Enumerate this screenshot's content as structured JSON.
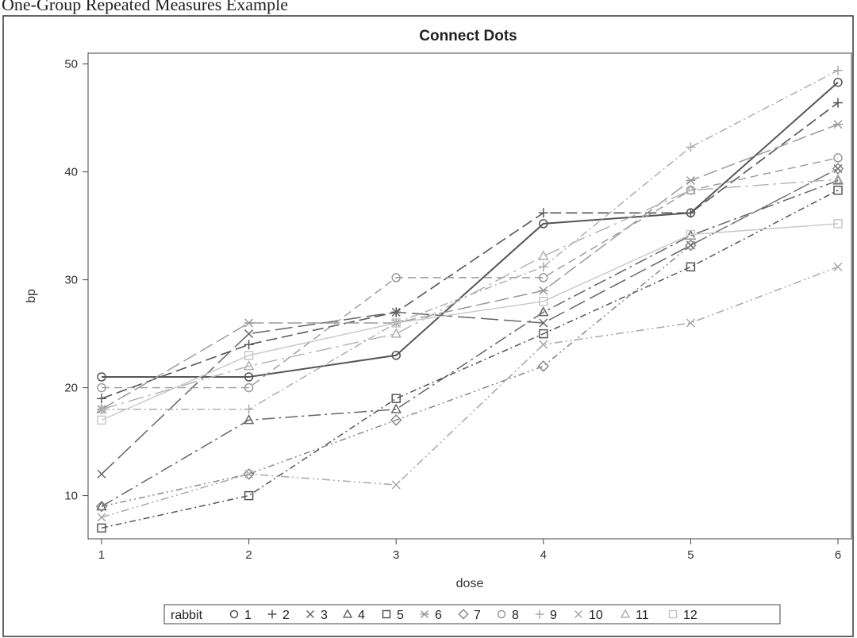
{
  "header": {
    "caption": "One-Group Repeated Measures Example"
  },
  "chart_data": {
    "type": "line",
    "title": "Connect Dots",
    "xlabel": "dose",
    "ylabel": "bp",
    "x": [
      1,
      2,
      3,
      4,
      5,
      6
    ],
    "xlim": [
      1,
      6
    ],
    "ylim": [
      6,
      51
    ],
    "xticks": [
      "1",
      "2",
      "3",
      "4",
      "5",
      "6"
    ],
    "yticks": [
      "10",
      "20",
      "30",
      "40",
      "50"
    ],
    "grid": false,
    "legend": {
      "title": "rabbit",
      "placement": "bottom-center"
    },
    "series": [
      {
        "name": "1",
        "marker": "circle",
        "values": [
          21,
          21,
          23,
          35.2,
          36.2,
          48.3
        ],
        "color": "#555555",
        "width": 2.0,
        "dash": ""
      },
      {
        "name": "2",
        "marker": "plus",
        "values": [
          19,
          24,
          27,
          36.2,
          36.2,
          46.4
        ],
        "color": "#555555",
        "width": 1.6,
        "dash": "14,6"
      },
      {
        "name": "3",
        "marker": "x",
        "values": [
          12,
          25,
          27,
          26,
          33.2,
          40.3
        ],
        "color": "#666666",
        "width": 1.5,
        "dash": "22,7"
      },
      {
        "name": "4",
        "marker": "triangle",
        "values": [
          9,
          17,
          18,
          27,
          34.1,
          39.2
        ],
        "color": "#666666",
        "width": 1.5,
        "dash": "16,5,3,5"
      },
      {
        "name": "5",
        "marker": "square",
        "values": [
          7,
          10,
          19,
          25,
          31.2,
          38.3
        ],
        "color": "#555555",
        "width": 1.5,
        "dash": "8,4,2,4"
      },
      {
        "name": "6",
        "marker": "asterisk",
        "values": [
          18,
          26,
          26,
          29,
          39.2,
          44.4
        ],
        "color": "#9a9a9a",
        "width": 1.5,
        "dash": "18,6"
      },
      {
        "name": "7",
        "marker": "diamond",
        "values": [
          9,
          12,
          17,
          22,
          33.2,
          40.3
        ],
        "color": "#888888",
        "width": 1.5,
        "dash": "8,4,2,4,2,4"
      },
      {
        "name": "8",
        "marker": "circle",
        "values": [
          20,
          20,
          30.2,
          30.2,
          38.3,
          41.3
        ],
        "color": "#999999",
        "width": 1.4,
        "dash": "10,6"
      },
      {
        "name": "9",
        "marker": "plus",
        "values": [
          18,
          18,
          26,
          31.2,
          42.3,
          49.4
        ],
        "color": "#aaaaaa",
        "width": 1.4,
        "dash": "10,4,2,4"
      },
      {
        "name": "10",
        "marker": "x",
        "values": [
          8,
          12,
          11,
          24,
          26,
          31.2
        ],
        "color": "#a8a8a8",
        "width": 1.5,
        "dash": "10,4,2,4,2,4"
      },
      {
        "name": "11",
        "marker": "triangle",
        "values": [
          18,
          22,
          25,
          32.2,
          38.3,
          39.3
        ],
        "color": "#b0b0b0",
        "width": 1.4,
        "dash": "20,6,3,6"
      },
      {
        "name": "12",
        "marker": "square",
        "values": [
          17,
          23,
          26,
          28,
          34.2,
          35.2
        ],
        "color": "#c8c8c8",
        "width": 1.4,
        "dash": ""
      }
    ]
  }
}
